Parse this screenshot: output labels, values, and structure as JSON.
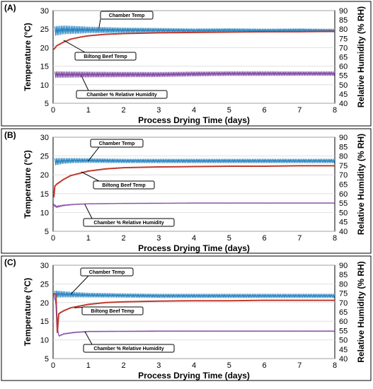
{
  "chart_data": [
    {
      "type": "line",
      "panel_label": "(A)",
      "xlabel": "Process Drying Time (days)",
      "ylabel": "Temperature (°C)",
      "y2label": "Relative Humidity (% RH)",
      "xlim": [
        0,
        8
      ],
      "ylim": [
        5,
        30
      ],
      "y2lim": [
        40,
        90
      ],
      "x_ticks": [
        0,
        1,
        2,
        3,
        4,
        5,
        6,
        7,
        8
      ],
      "y_ticks": [
        5,
        10,
        15,
        20,
        25,
        30
      ],
      "y2_ticks": [
        40,
        45,
        50,
        55,
        60,
        65,
        70,
        75,
        80,
        85,
        90
      ],
      "grid": true,
      "series": [
        {
          "name": "Chamber Temp",
          "axis": "left",
          "color": "#1f7fbf",
          "x": [
            0.05,
            0.3,
            0.6,
            1,
            2,
            3,
            4,
            5,
            6,
            7,
            8
          ],
          "y": [
            24.5,
            24.8,
            24.8,
            24.8,
            24.7,
            24.7,
            24.6,
            24.7,
            24.6,
            24.7,
            24.6
          ],
          "amplitude": [
            2.5,
            2.2,
            2.0,
            1.6,
            1.3,
            1.1,
            1.0,
            0.9,
            0.9,
            0.8,
            0.8
          ]
        },
        {
          "name": "Biltong Beef Temp",
          "axis": "left",
          "color": "#c0392b",
          "x": [
            0.02,
            0.1,
            0.3,
            0.5,
            0.8,
            1,
            1.5,
            2,
            3,
            4,
            5,
            6,
            7,
            8
          ],
          "y": [
            19.5,
            20.5,
            21.5,
            22.3,
            22.9,
            23.2,
            23.6,
            23.8,
            24.0,
            24.1,
            24.2,
            24.3,
            24.3,
            24.4
          ]
        },
        {
          "name": "Chamber % Relative Humidity",
          "axis": "right",
          "color": "#7b3fa0",
          "x": [
            0.05,
            0.5,
            1,
            2,
            3,
            4,
            5,
            6,
            7,
            8
          ],
          "y": [
            55.5,
            55.5,
            55.5,
            55.5,
            55.5,
            55.8,
            56,
            56,
            56,
            56
          ],
          "amplitude": [
            3.2,
            3.0,
            2.8,
            2.6,
            2.4,
            2.3,
            2.2,
            2.2,
            2.1,
            2.1
          ]
        }
      ],
      "annotations": [
        {
          "text": "Chamber Temp",
          "target_x": 1.3,
          "target_y": 25.2
        },
        {
          "text": "Biltong Beef Temp",
          "target_x": 0.3,
          "target_y": 22.0
        },
        {
          "text": "Chamber % Relative Humidity",
          "target_x": 0.8,
          "target_y": 12.5
        }
      ]
    },
    {
      "type": "line",
      "panel_label": "(B)",
      "xlabel": "Process Drying Time (days)",
      "ylabel": "Temperature (°C)",
      "y2label": "Relative Humidity (% RH)",
      "xlim": [
        0,
        8
      ],
      "ylim": [
        5,
        30
      ],
      "y2lim": [
        40,
        90
      ],
      "x_ticks": [
        0,
        1,
        2,
        3,
        4,
        5,
        6,
        7,
        8
      ],
      "y_ticks": [
        5,
        10,
        15,
        20,
        25,
        30
      ],
      "y2_ticks": [
        40,
        45,
        50,
        55,
        60,
        65,
        70,
        75,
        80,
        85,
        90
      ],
      "grid": true,
      "series": [
        {
          "name": "Chamber Temp",
          "axis": "left",
          "color": "#1f7fbf",
          "x": [
            0.05,
            0.3,
            0.6,
            1,
            2,
            3,
            4,
            5,
            6,
            7,
            8
          ],
          "y": [
            23.5,
            23.7,
            23.8,
            23.8,
            23.7,
            23.7,
            23.7,
            23.7,
            23.7,
            23.7,
            23.7
          ],
          "amplitude": [
            1.8,
            1.4,
            1.2,
            1.1,
            1.0,
            1.0,
            1.0,
            1.0,
            1.0,
            1.0,
            1.0
          ]
        },
        {
          "name": "Biltong Beef Temp",
          "axis": "left",
          "color": "#c0392b",
          "x": [
            0.02,
            0.05,
            0.1,
            0.3,
            0.5,
            1,
            1.5,
            2,
            3,
            4,
            5,
            6,
            7,
            8
          ],
          "y": [
            14.0,
            17.0,
            17.5,
            18.8,
            19.8,
            21.0,
            21.6,
            21.9,
            22.1,
            22.2,
            22.3,
            22.3,
            22.4,
            22.4
          ]
        },
        {
          "name": "Chamber % Relative Humidity",
          "axis": "right",
          "color": "#7b3fa0",
          "x": [
            0.02,
            0.1,
            0.3,
            0.6,
            1,
            2,
            3,
            4,
            5,
            6,
            7,
            8
          ],
          "y": [
            54.0,
            53.0,
            53.8,
            54.3,
            54.6,
            54.8,
            54.9,
            55,
            55,
            55,
            55,
            55
          ],
          "amplitude": [
            1.2,
            1.0,
            0.6,
            0.4,
            0.3,
            0.3,
            0.3,
            0.3,
            0.3,
            0.3,
            0.3,
            0.3
          ]
        }
      ],
      "annotations": [
        {
          "text": "Chamber Temp",
          "target_x": 1.0,
          "target_y": 23.7
        },
        {
          "text": "Biltong Beef Temp",
          "target_x": 0.8,
          "target_y": 20.8
        },
        {
          "text": "Chamber % Relative Humidity",
          "target_x": 0.9,
          "target_y": 12.2
        }
      ]
    },
    {
      "type": "line",
      "panel_label": "(C)",
      "xlabel": "Process Drying Time (days)",
      "ylabel": "Temperature (°C)",
      "y2label": "Relative Humidity (% RH)",
      "xlim": [
        0,
        8
      ],
      "ylim": [
        5,
        30
      ],
      "y2lim": [
        40,
        90
      ],
      "x_ticks": [
        0,
        1,
        2,
        3,
        4,
        5,
        6,
        7,
        8
      ],
      "y_ticks": [
        5,
        10,
        15,
        20,
        25,
        30
      ],
      "y2_ticks": [
        40,
        45,
        50,
        55,
        60,
        65,
        70,
        75,
        80,
        85,
        90
      ],
      "grid": true,
      "series": [
        {
          "name": "Chamber Temp",
          "axis": "left",
          "color": "#1f7fbf",
          "x": [
            0.05,
            0.3,
            0.6,
            1,
            2,
            3,
            4,
            5,
            6,
            7,
            8
          ],
          "y": [
            22.3,
            22.2,
            22.1,
            22.0,
            21.9,
            21.8,
            21.8,
            21.8,
            21.8,
            21.8,
            21.8
          ],
          "amplitude": [
            1.8,
            1.5,
            1.3,
            1.1,
            1.0,
            1.0,
            1.0,
            1.0,
            1.0,
            1.0,
            1.0
          ]
        },
        {
          "name": "Biltong Beef Temp",
          "axis": "left",
          "color": "#c0392b",
          "x": [
            0.02,
            0.08,
            0.12,
            0.16,
            0.3,
            0.5,
            1,
            1.5,
            2,
            3,
            4,
            5,
            6,
            7,
            8
          ],
          "y": [
            22.5,
            22.0,
            12.0,
            17.0,
            17.8,
            18.6,
            19.5,
            20.0,
            20.2,
            20.4,
            20.5,
            20.5,
            20.6,
            20.6,
            20.6
          ]
        },
        {
          "name": "Chamber % Relative Humidity",
          "axis": "right",
          "color": "#7b3fa0",
          "x": [
            0.02,
            0.08,
            0.15,
            0.3,
            0.6,
            1,
            2,
            3,
            4,
            5,
            6,
            7,
            8
          ],
          "y": [
            74.0,
            70.0,
            52.0,
            53.2,
            54.0,
            54.5,
            54.6,
            54.7,
            54.7,
            54.7,
            54.7,
            54.7,
            54.7
          ],
          "amplitude": [
            0.5,
            0.5,
            0.6,
            0.5,
            0.5,
            0.4,
            0.4,
            0.4,
            0.4,
            0.4,
            0.4,
            0.4,
            0.4
          ]
        }
      ],
      "annotations": [
        {
          "text": "Chamber Temp",
          "target_x": 0.5,
          "target_y": 22.2
        },
        {
          "text": "Biltong Beef Temp",
          "target_x": 0.6,
          "target_y": 18.6
        },
        {
          "text": "Chamber % Relative Humidity",
          "target_x": 0.9,
          "target_y": 12.3
        }
      ]
    }
  ]
}
